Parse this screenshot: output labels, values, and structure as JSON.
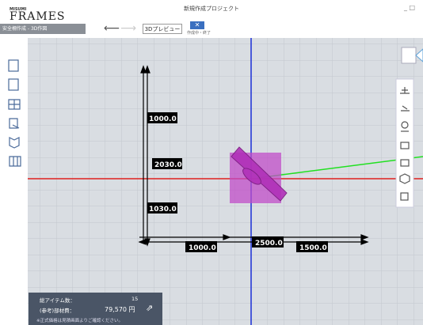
{
  "header": {
    "brand": "MISUMI",
    "logo": "FRAMES",
    "project_title": "新規作成プロジェクト",
    "mode": "安全柵作成 - 3D作図",
    "preview_button": "3Dプレビュー",
    "close_label": "作成中・終了",
    "window_controls": "_ □"
  },
  "dimensions": {
    "vertical_top": "1000.0",
    "vertical_total": "2030.0",
    "vertical_bottom": "1030.0",
    "horizontal_left": "1000.0",
    "horizontal_total": "2500.0",
    "horizontal_right": "1500.0"
  },
  "summary": {
    "items_label": "総アイテム数：",
    "items_value": "15",
    "cost_label": "(参考)部材費：",
    "cost_value": "79,570 円",
    "note": "※正式価格は見積画面よりご確認ください。"
  }
}
